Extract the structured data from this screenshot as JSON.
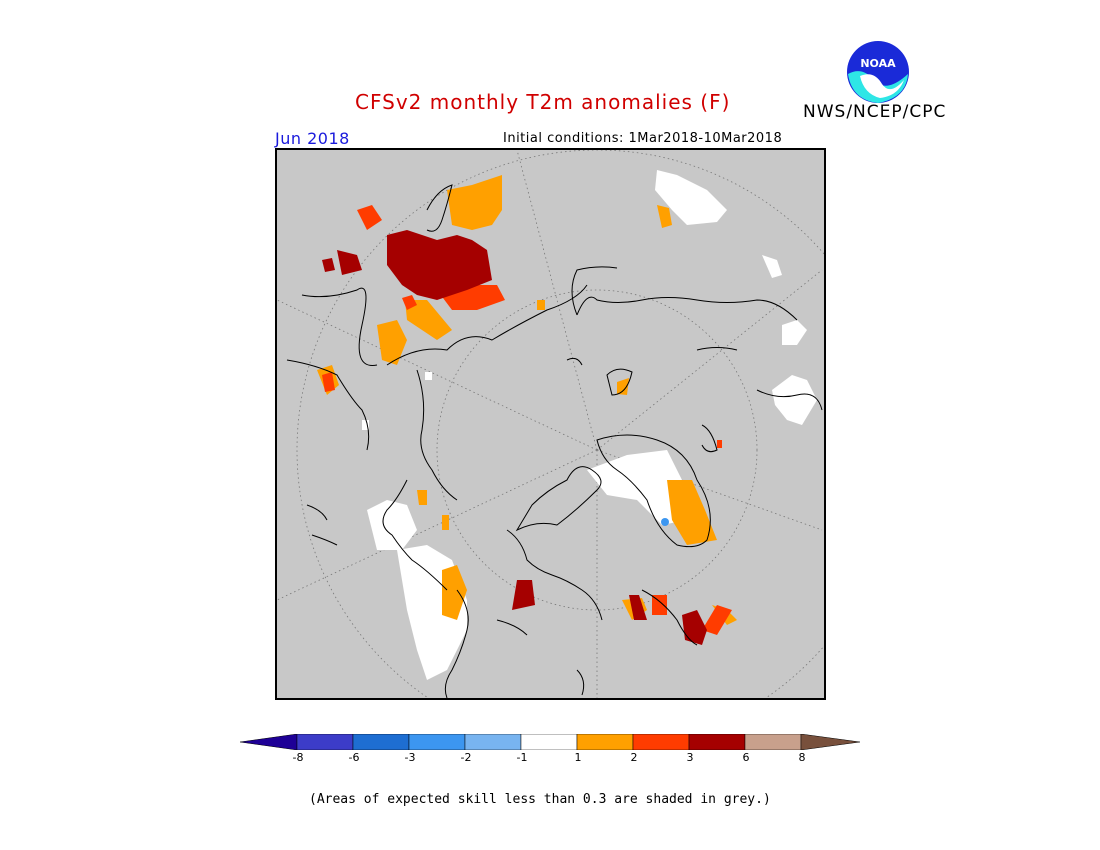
{
  "header": {
    "title": "CFSv2 monthly T2m anomalies (F)",
    "agency": "NWS/NCEP/CPC",
    "valid_month": "Jun 2018",
    "initial_conditions": "Initial conditions: 1Mar2018-10Mar2018",
    "logo_text": "NOAA"
  },
  "colors": {
    "title": "#d00000",
    "valid_month": "#1a1adc",
    "map_background": "#c8c8c8",
    "coastline": "#000000",
    "grid": "#777777"
  },
  "legend": {
    "bins": [
      {
        "label": "< -8",
        "color": "#1e0096"
      },
      {
        "label": "-8 to -6",
        "color": "#3c3cc8"
      },
      {
        "label": "-6 to -3",
        "color": "#1e6ed2"
      },
      {
        "label": "-3 to -2",
        "color": "#3c96f0"
      },
      {
        "label": "-2 to -1",
        "color": "#78b4f0"
      },
      {
        "label": "-1 to 1",
        "color": "#ffffff"
      },
      {
        "label": "1 to 2",
        "color": "#ffa000"
      },
      {
        "label": "2 to 3",
        "color": "#ff3c00"
      },
      {
        "label": "3 to 6",
        "color": "#a50000"
      },
      {
        "label": "6 to 8",
        "color": "#c8a08c"
      },
      {
        "label": "> 8",
        "color": "#78503c"
      }
    ],
    "tick_labels": [
      "-8",
      "-6",
      "-3",
      "-2",
      "-1",
      "1",
      "2",
      "3",
      "6",
      "8"
    ]
  },
  "footnote": "(Areas of expected skill less than 0.3 are shaded in grey.)"
}
